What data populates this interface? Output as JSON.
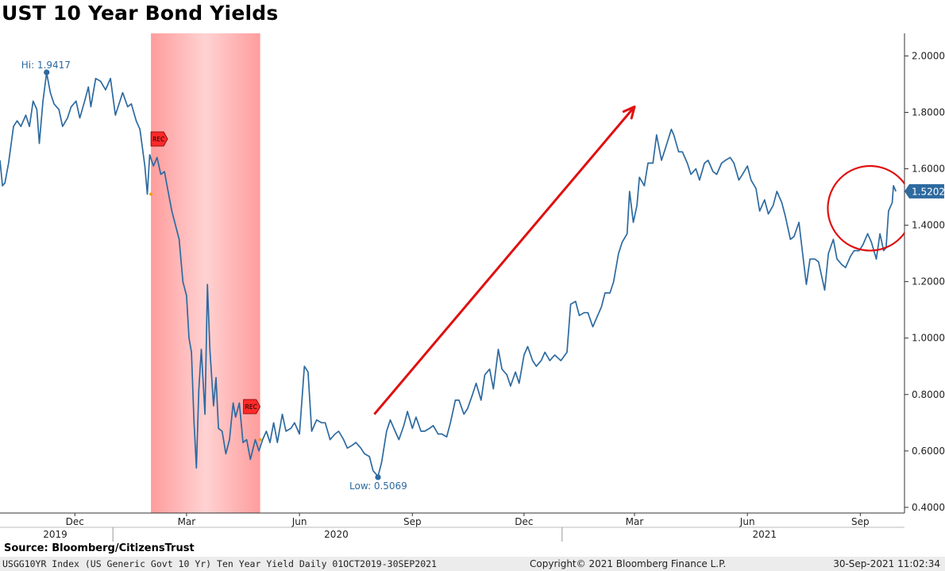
{
  "title": "UST 10 Year Bond Yields",
  "source": "Source: Bloomberg/CitizensTrust",
  "footer": {
    "left": "USGG10YR Index (US Generic Govt 10 Yr) Ten Year Yield  Daily 01OCT2019-30SEP2021",
    "middle": "Copyright© 2021 Bloomberg Finance L.P.",
    "right": "30-Sep-2021 11:02:34"
  },
  "colors": {
    "line": "#2d6aa0",
    "recession": "#ffb3b3",
    "arrow": "#e01010",
    "circle": "#e01010",
    "rec_tag": "#ff2a2a"
  },
  "chart_data": {
    "type": "line",
    "title": "UST 10 Year Bond Yields",
    "series": [
      {
        "name": "USGG10YR Index",
        "points": [
          [
            "2019-10-01",
            1.63
          ],
          [
            "2019-10-03",
            1.54
          ],
          [
            "2019-10-05",
            1.55
          ],
          [
            "2019-10-08",
            1.62
          ],
          [
            "2019-10-12",
            1.75
          ],
          [
            "2019-10-15",
            1.77
          ],
          [
            "2019-10-18",
            1.75
          ],
          [
            "2019-10-22",
            1.79
          ],
          [
            "2019-10-25",
            1.75
          ],
          [
            "2019-10-28",
            1.84
          ],
          [
            "2019-10-31",
            1.81
          ],
          [
            "2019-11-02",
            1.69
          ],
          [
            "2019-11-05",
            1.84
          ],
          [
            "2019-11-08",
            1.94
          ],
          [
            "2019-11-11",
            1.87
          ],
          [
            "2019-11-14",
            1.83
          ],
          [
            "2019-11-18",
            1.81
          ],
          [
            "2019-11-21",
            1.75
          ],
          [
            "2019-11-25",
            1.78
          ],
          [
            "2019-11-28",
            1.82
          ],
          [
            "2019-12-02",
            1.84
          ],
          [
            "2019-12-05",
            1.78
          ],
          [
            "2019-12-09",
            1.84
          ],
          [
            "2019-12-12",
            1.89
          ],
          [
            "2019-12-14",
            1.82
          ],
          [
            "2019-12-18",
            1.92
          ],
          [
            "2019-12-22",
            1.91
          ],
          [
            "2019-12-26",
            1.88
          ],
          [
            "2019-12-30",
            1.92
          ],
          [
            "2020-01-03",
            1.79
          ],
          [
            "2020-01-06",
            1.83
          ],
          [
            "2020-01-09",
            1.87
          ],
          [
            "2020-01-13",
            1.82
          ],
          [
            "2020-01-16",
            1.83
          ],
          [
            "2020-01-20",
            1.77
          ],
          [
            "2020-01-23",
            1.74
          ],
          [
            "2020-01-27",
            1.61
          ],
          [
            "2020-01-29",
            1.51
          ],
          [
            "2020-01-31",
            1.65
          ],
          [
            "2020-02-03",
            1.61
          ],
          [
            "2020-02-06",
            1.64
          ],
          [
            "2020-02-09",
            1.58
          ],
          [
            "2020-02-12",
            1.59
          ],
          [
            "2020-02-15",
            1.52
          ],
          [
            "2020-02-18",
            1.45
          ],
          [
            "2020-02-21",
            1.4
          ],
          [
            "2020-02-24",
            1.35
          ],
          [
            "2020-02-27",
            1.2
          ],
          [
            "2020-03-01",
            1.15
          ],
          [
            "2020-03-03",
            1.0
          ],
          [
            "2020-03-05",
            0.95
          ],
          [
            "2020-03-07",
            0.71
          ],
          [
            "2020-03-09",
            0.54
          ],
          [
            "2020-03-11",
            0.82
          ],
          [
            "2020-03-13",
            0.96
          ],
          [
            "2020-03-16",
            0.73
          ],
          [
            "2020-03-18",
            1.19
          ],
          [
            "2020-03-20",
            0.96
          ],
          [
            "2020-03-23",
            0.76
          ],
          [
            "2020-03-25",
            0.86
          ],
          [
            "2020-03-27",
            0.68
          ],
          [
            "2020-03-30",
            0.67
          ],
          [
            "2020-04-02",
            0.59
          ],
          [
            "2020-04-05",
            0.64
          ],
          [
            "2020-04-08",
            0.77
          ],
          [
            "2020-04-10",
            0.72
          ],
          [
            "2020-04-13",
            0.77
          ],
          [
            "2020-04-16",
            0.63
          ],
          [
            "2020-04-19",
            0.64
          ],
          [
            "2020-04-22",
            0.57
          ],
          [
            "2020-04-26",
            0.64
          ],
          [
            "2020-04-29",
            0.6
          ],
          [
            "2020-05-02",
            0.64
          ],
          [
            "2020-05-05",
            0.67
          ],
          [
            "2020-05-08",
            0.63
          ],
          [
            "2020-05-11",
            0.7
          ],
          [
            "2020-05-14",
            0.63
          ],
          [
            "2020-05-18",
            0.73
          ],
          [
            "2020-05-21",
            0.67
          ],
          [
            "2020-05-25",
            0.68
          ],
          [
            "2020-05-28",
            0.7
          ],
          [
            "2020-06-01",
            0.66
          ],
          [
            "2020-06-05",
            0.9
          ],
          [
            "2020-06-08",
            0.88
          ],
          [
            "2020-06-11",
            0.67
          ],
          [
            "2020-06-15",
            0.71
          ],
          [
            "2020-06-19",
            0.7
          ],
          [
            "2020-06-22",
            0.7
          ],
          [
            "2020-06-26",
            0.64
          ],
          [
            "2020-06-30",
            0.66
          ],
          [
            "2020-07-03",
            0.67
          ],
          [
            "2020-07-07",
            0.64
          ],
          [
            "2020-07-10",
            0.61
          ],
          [
            "2020-07-14",
            0.62
          ],
          [
            "2020-07-17",
            0.63
          ],
          [
            "2020-07-21",
            0.61
          ],
          [
            "2020-07-24",
            0.59
          ],
          [
            "2020-07-28",
            0.58
          ],
          [
            "2020-07-31",
            0.53
          ],
          [
            "2020-08-04",
            0.51
          ],
          [
            "2020-08-07",
            0.56
          ],
          [
            "2020-08-11",
            0.67
          ],
          [
            "2020-08-14",
            0.71
          ],
          [
            "2020-08-18",
            0.67
          ],
          [
            "2020-08-21",
            0.64
          ],
          [
            "2020-08-25",
            0.69
          ],
          [
            "2020-08-28",
            0.74
          ],
          [
            "2020-09-01",
            0.68
          ],
          [
            "2020-09-04",
            0.72
          ],
          [
            "2020-09-08",
            0.67
          ],
          [
            "2020-09-11",
            0.67
          ],
          [
            "2020-09-15",
            0.68
          ],
          [
            "2020-09-18",
            0.69
          ],
          [
            "2020-09-22",
            0.66
          ],
          [
            "2020-09-25",
            0.66
          ],
          [
            "2020-09-29",
            0.65
          ],
          [
            "2020-10-02",
            0.7
          ],
          [
            "2020-10-06",
            0.78
          ],
          [
            "2020-10-09",
            0.78
          ],
          [
            "2020-10-13",
            0.73
          ],
          [
            "2020-10-16",
            0.75
          ],
          [
            "2020-10-20",
            0.8
          ],
          [
            "2020-10-23",
            0.84
          ],
          [
            "2020-10-27",
            0.78
          ],
          [
            "2020-10-30",
            0.87
          ],
          [
            "2020-11-03",
            0.89
          ],
          [
            "2020-11-06",
            0.82
          ],
          [
            "2020-11-10",
            0.96
          ],
          [
            "2020-11-13",
            0.89
          ],
          [
            "2020-11-17",
            0.87
          ],
          [
            "2020-11-20",
            0.83
          ],
          [
            "2020-11-24",
            0.88
          ],
          [
            "2020-11-27",
            0.84
          ],
          [
            "2020-12-01",
            0.94
          ],
          [
            "2020-12-04",
            0.97
          ],
          [
            "2020-12-08",
            0.92
          ],
          [
            "2020-12-11",
            0.9
          ],
          [
            "2020-12-15",
            0.92
          ],
          [
            "2020-12-18",
            0.95
          ],
          [
            "2020-12-22",
            0.92
          ],
          [
            "2020-12-26",
            0.94
          ],
          [
            "2020-12-31",
            0.92
          ],
          [
            "2021-01-05",
            0.95
          ],
          [
            "2021-01-08",
            1.12
          ],
          [
            "2021-01-12",
            1.13
          ],
          [
            "2021-01-15",
            1.08
          ],
          [
            "2021-01-19",
            1.09
          ],
          [
            "2021-01-22",
            1.09
          ],
          [
            "2021-01-26",
            1.04
          ],
          [
            "2021-01-29",
            1.07
          ],
          [
            "2021-02-02",
            1.11
          ],
          [
            "2021-02-05",
            1.16
          ],
          [
            "2021-02-09",
            1.16
          ],
          [
            "2021-02-12",
            1.2
          ],
          [
            "2021-02-16",
            1.3
          ],
          [
            "2021-02-19",
            1.34
          ],
          [
            "2021-02-23",
            1.37
          ],
          [
            "2021-02-25",
            1.52
          ],
          [
            "2021-02-28",
            1.41
          ],
          [
            "2021-03-03",
            1.47
          ],
          [
            "2021-03-05",
            1.57
          ],
          [
            "2021-03-09",
            1.54
          ],
          [
            "2021-03-12",
            1.62
          ],
          [
            "2021-03-16",
            1.62
          ],
          [
            "2021-03-19",
            1.72
          ],
          [
            "2021-03-23",
            1.63
          ],
          [
            "2021-03-26",
            1.67
          ],
          [
            "2021-03-31",
            1.74
          ],
          [
            "2021-04-02",
            1.72
          ],
          [
            "2021-04-06",
            1.66
          ],
          [
            "2021-04-09",
            1.66
          ],
          [
            "2021-04-13",
            1.62
          ],
          [
            "2021-04-16",
            1.58
          ],
          [
            "2021-04-20",
            1.6
          ],
          [
            "2021-04-23",
            1.56
          ],
          [
            "2021-04-27",
            1.62
          ],
          [
            "2021-04-30",
            1.63
          ],
          [
            "2021-05-04",
            1.59
          ],
          [
            "2021-05-07",
            1.58
          ],
          [
            "2021-05-11",
            1.62
          ],
          [
            "2021-05-14",
            1.63
          ],
          [
            "2021-05-18",
            1.64
          ],
          [
            "2021-05-21",
            1.62
          ],
          [
            "2021-05-25",
            1.56
          ],
          [
            "2021-05-28",
            1.58
          ],
          [
            "2021-06-01",
            1.61
          ],
          [
            "2021-06-04",
            1.56
          ],
          [
            "2021-06-08",
            1.53
          ],
          [
            "2021-06-11",
            1.45
          ],
          [
            "2021-06-15",
            1.49
          ],
          [
            "2021-06-18",
            1.44
          ],
          [
            "2021-06-22",
            1.47
          ],
          [
            "2021-06-25",
            1.52
          ],
          [
            "2021-06-29",
            1.48
          ],
          [
            "2021-07-02",
            1.43
          ],
          [
            "2021-07-06",
            1.35
          ],
          [
            "2021-07-09",
            1.36
          ],
          [
            "2021-07-13",
            1.41
          ],
          [
            "2021-07-16",
            1.3
          ],
          [
            "2021-07-19",
            1.19
          ],
          [
            "2021-07-22",
            1.28
          ],
          [
            "2021-07-26",
            1.28
          ],
          [
            "2021-07-29",
            1.27
          ],
          [
            "2021-08-03",
            1.17
          ],
          [
            "2021-08-06",
            1.3
          ],
          [
            "2021-08-10",
            1.35
          ],
          [
            "2021-08-13",
            1.28
          ],
          [
            "2021-08-17",
            1.26
          ],
          [
            "2021-08-20",
            1.25
          ],
          [
            "2021-08-24",
            1.29
          ],
          [
            "2021-08-27",
            1.31
          ],
          [
            "2021-08-31",
            1.31
          ],
          [
            "2021-09-03",
            1.33
          ],
          [
            "2021-09-07",
            1.37
          ],
          [
            "2021-09-10",
            1.34
          ],
          [
            "2021-09-14",
            1.28
          ],
          [
            "2021-09-17",
            1.37
          ],
          [
            "2021-09-20",
            1.31
          ],
          [
            "2021-09-22",
            1.32
          ],
          [
            "2021-09-24",
            1.45
          ],
          [
            "2021-09-27",
            1.48
          ],
          [
            "2021-09-28",
            1.54
          ],
          [
            "2021-09-30",
            1.52
          ]
        ]
      }
    ],
    "y_ticks": [
      "0.4000",
      "0.6000",
      "0.8000",
      "1.0000",
      "1.2000",
      "1.4000",
      "1.6000",
      "1.8000",
      "2.0000"
    ],
    "ylim": [
      0.38,
      2.08
    ],
    "xlim": [
      "2019-10-01",
      "2021-10-07"
    ],
    "x_month_ticks": [
      {
        "date": "2019-12-01",
        "label": "Dec"
      },
      {
        "date": "2020-03-01",
        "label": "Mar"
      },
      {
        "date": "2020-06-01",
        "label": "Jun"
      },
      {
        "date": "2020-09-01",
        "label": "Sep"
      },
      {
        "date": "2020-12-01",
        "label": "Dec"
      },
      {
        "date": "2021-03-01",
        "label": "Mar"
      },
      {
        "date": "2021-06-01",
        "label": "Jun"
      },
      {
        "date": "2021-09-01",
        "label": "Sep"
      }
    ],
    "x_year_labels": [
      {
        "date": "2019-11-15",
        "label": "2019"
      },
      {
        "date": "2020-07-01",
        "label": "2020"
      },
      {
        "date": "2021-06-15",
        "label": "2021"
      }
    ],
    "x_year_dividers": [
      "2020-01-01",
      "2021-01-01"
    ],
    "recession": {
      "start": "2020-02-01",
      "end": "2020-04-30",
      "label": "REC"
    },
    "annotations": {
      "high": {
        "date": "2019-11-08",
        "value": 1.9417,
        "label": "Hi: 1.9417"
      },
      "low": {
        "date": "2020-08-04",
        "value": 0.5069,
        "label": "Low: 0.5069"
      },
      "last": {
        "date": "2021-09-30",
        "value": 1.5202,
        "label": "1.5202"
      }
    },
    "arrow": {
      "from": [
        "2020-08-01",
        0.73
      ],
      "to": [
        "2021-03-01",
        1.82
      ]
    },
    "circle": {
      "center": [
        "2021-09-09",
        1.46
      ],
      "radius_value": 0.15
    },
    "grid": false
  }
}
